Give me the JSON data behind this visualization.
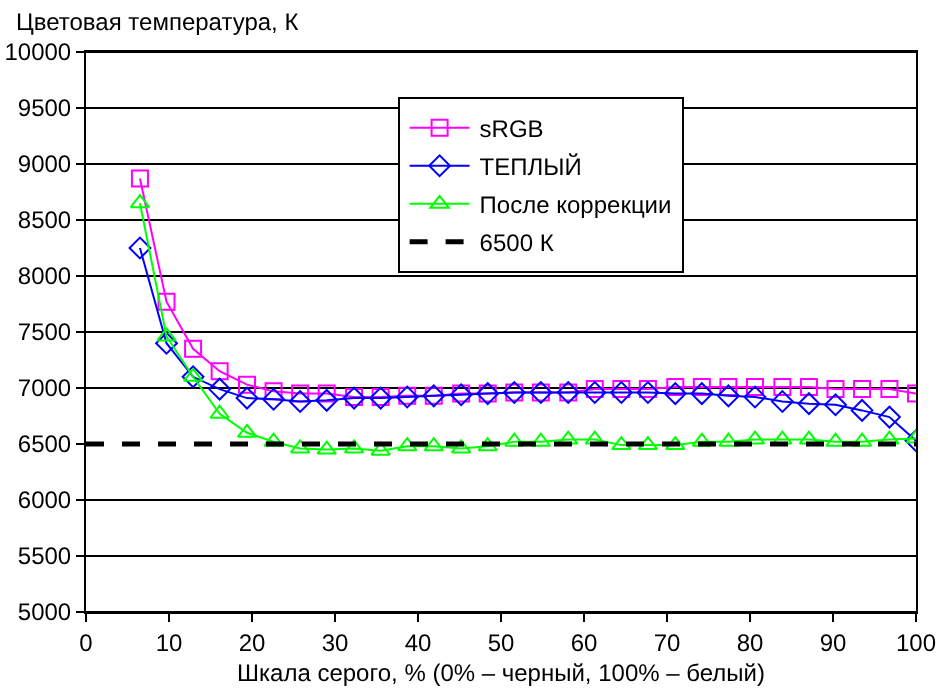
{
  "chart_data": {
    "type": "line",
    "ylabel": "Цветовая температура, К",
    "xlabel": "Шкала серого, % (0% – черный, 100% – белый)",
    "x": [
      6.5,
      9.7,
      12.9,
      16.1,
      19.4,
      22.6,
      25.8,
      29.0,
      32.3,
      35.5,
      38.7,
      41.9,
      45.2,
      48.4,
      51.6,
      54.8,
      58.1,
      61.3,
      64.5,
      67.7,
      71.0,
      74.2,
      77.4,
      80.6,
      83.9,
      87.1,
      90.3,
      93.5,
      96.8,
      100
    ],
    "series": [
      {
        "name": "sRGB",
        "color": "#ff00ff",
        "marker": "square",
        "values": [
          8870,
          7770,
          7350,
          7150,
          7030,
          6970,
          6950,
          6950,
          6920,
          6920,
          6930,
          6930,
          6950,
          6950,
          6960,
          6960,
          6960,
          6990,
          6990,
          6990,
          7010,
          7010,
          7010,
          7010,
          7010,
          7010,
          6990,
          6990,
          6990,
          6950
        ]
      },
      {
        "name": "ТЕПЛЫЙ",
        "color": "#0000ff",
        "marker": "diamond",
        "values": [
          8250,
          7400,
          7100,
          6990,
          6910,
          6900,
          6880,
          6890,
          6910,
          6910,
          6920,
          6930,
          6940,
          6950,
          6960,
          6960,
          6960,
          6960,
          6960,
          6960,
          6950,
          6950,
          6930,
          6920,
          6880,
          6860,
          6850,
          6800,
          6740,
          6530
        ]
      },
      {
        "name": "После коррекции",
        "color": "#00ff00",
        "marker": "triangle",
        "values": [
          8650,
          7460,
          7100,
          6770,
          6600,
          6520,
          6460,
          6450,
          6460,
          6440,
          6480,
          6480,
          6460,
          6480,
          6520,
          6520,
          6540,
          6540,
          6490,
          6490,
          6490,
          6520,
          6520,
          6540,
          6540,
          6540,
          6520,
          6520,
          6540,
          6550
        ]
      },
      {
        "name": "6500 К",
        "color": "#000000",
        "marker": "none",
        "line_style": "dashed",
        "x": [
          0,
          100
        ],
        "values": [
          6500,
          6500
        ]
      }
    ],
    "xlim": [
      0,
      100
    ],
    "xticks": [
      0,
      10,
      20,
      30,
      40,
      50,
      60,
      70,
      80,
      90,
      100
    ],
    "ylim": [
      5000,
      10000
    ],
    "yticks": [
      5000,
      5500,
      6000,
      6500,
      7000,
      7500,
      8000,
      8500,
      9000,
      9500,
      10000
    ],
    "grid": "y",
    "legend": "top right"
  }
}
